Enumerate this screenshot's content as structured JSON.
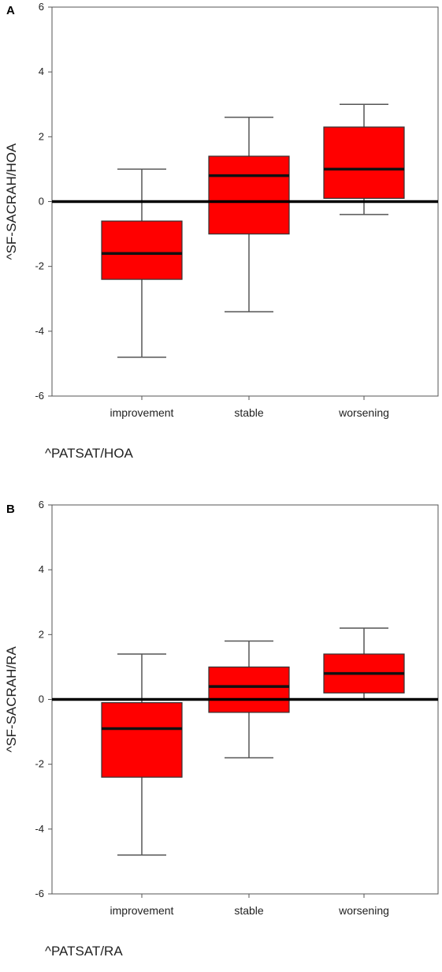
{
  "chart_data": [
    {
      "type": "box",
      "panel_label": "A",
      "ylabel": "^SF-SACRAH/HOA",
      "xlabel": "^PATSAT/HOA",
      "ylim": [
        -6,
        6
      ],
      "yticks": [
        -6,
        -4,
        -2,
        0,
        2,
        4,
        6
      ],
      "reference_line": 0,
      "box_color": "#ff0000",
      "categories": [
        "improvement",
        "stable",
        "worsening"
      ],
      "boxes": [
        {
          "category": "improvement",
          "whisker_low": -4.8,
          "q1": -2.4,
          "median": -1.6,
          "q3": -0.6,
          "whisker_high": 1.0
        },
        {
          "category": "stable",
          "whisker_low": -3.4,
          "q1": -1.0,
          "median": 0.8,
          "q3": 1.4,
          "whisker_high": 2.6
        },
        {
          "category": "worsening",
          "whisker_low": -0.4,
          "q1": 0.1,
          "median": 1.0,
          "q3": 2.3,
          "whisker_high": 3.0
        }
      ]
    },
    {
      "type": "box",
      "panel_label": "B",
      "ylabel": "^SF-SACRAH/RA",
      "xlabel": "^PATSAT/RA",
      "ylim": [
        -6,
        6
      ],
      "yticks": [
        -6,
        -4,
        -2,
        0,
        2,
        4,
        6
      ],
      "reference_line": 0,
      "box_color": "#ff0000",
      "categories": [
        "improvement",
        "stable",
        "worsening"
      ],
      "boxes": [
        {
          "category": "improvement",
          "whisker_low": -4.8,
          "q1": -2.4,
          "median": -0.9,
          "q3": -0.1,
          "whisker_high": 1.4
        },
        {
          "category": "stable",
          "whisker_low": -1.8,
          "q1": -0.4,
          "median": 0.4,
          "q3": 1.0,
          "whisker_high": 1.8
        },
        {
          "category": "worsening",
          "whisker_low": 0.0,
          "q1": 0.2,
          "median": 0.8,
          "q3": 1.4,
          "whisker_high": 2.2
        }
      ]
    }
  ]
}
